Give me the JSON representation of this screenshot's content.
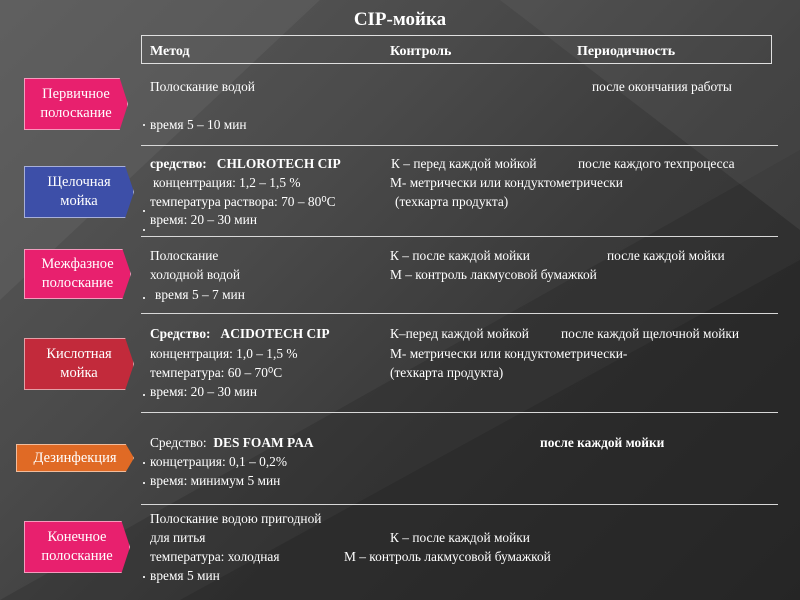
{
  "title": "CIP-мойка",
  "header": {
    "col1": "Метод",
    "col2": "Контроль",
    "col3": "Периодичность"
  },
  "colors": {
    "pink": "#e8206e",
    "blue": "#3d4fa8",
    "red": "#c22a3b",
    "orange": "#e06a25"
  },
  "labels": {
    "primary": [
      "Первичное",
      "полоскание"
    ],
    "alkaline": [
      "Щелочная",
      "мойка"
    ],
    "interphase": [
      "Межфазное",
      "полоскание"
    ],
    "acid": [
      "Кислотная",
      "мойка"
    ],
    "disinfection": "Дезинфекция",
    "final": [
      "Конечное",
      "полоскание"
    ]
  },
  "rows": {
    "primary": {
      "method": "Полоскание  водой",
      "period": "после окончания работы",
      "time": "время 5 – 10 мин"
    },
    "alkaline": {
      "agent_label": "средство:",
      "agent_name": "CHLOROTECH CIP",
      "control1": "К – перед каждой мойкой",
      "period": "после каждого техпроцесса",
      "conc": "концентрация:  1,2 – 1,5 %",
      "control2": "М- метрически или кондуктометрически",
      "temp": "температура раствора:  70 – 80⁰С",
      "control3": "(техкарта продукта)",
      "time": "время: 20 – 30 мин"
    },
    "interphase": {
      "method1": "Полоскание",
      "control1": "К – после каждой мойки",
      "period": "после каждой мойки",
      "method2": "холодной водой",
      "control2": "М – контроль лакмусовой бумажкой",
      "time": "время 5 – 7 мин"
    },
    "acid": {
      "agent_label": "Средство:",
      "agent_name": "ACIDOTECH CIP",
      "control1": "К–перед каждой мойкой",
      "period": "после каждой щелочной мойки",
      "conc": "концентрация:  1,0 – 1,5 %",
      "control2": "М- метрически или кондуктометрически-",
      "temp": "температура:  60 – 70⁰С",
      "control3": "(техкарта продукта)",
      "time": "время: 20 – 30 мин"
    },
    "disinfection": {
      "agent_label": "Средство:",
      "agent_name": "DES FOAM PAA",
      "period": "после каждой мойки",
      "conc": "концетрация: 0,1 – 0,2%",
      "time": "время: минимум 5 мин"
    },
    "final": {
      "method1": "Полоскание водою  пригодной",
      "method2": "для питья",
      "control1": "К – после каждой мойки",
      "temp": "температура: холодная",
      "control2": "М – контроль лакмусовой бумажкой",
      "time": "время  5  мин"
    }
  }
}
